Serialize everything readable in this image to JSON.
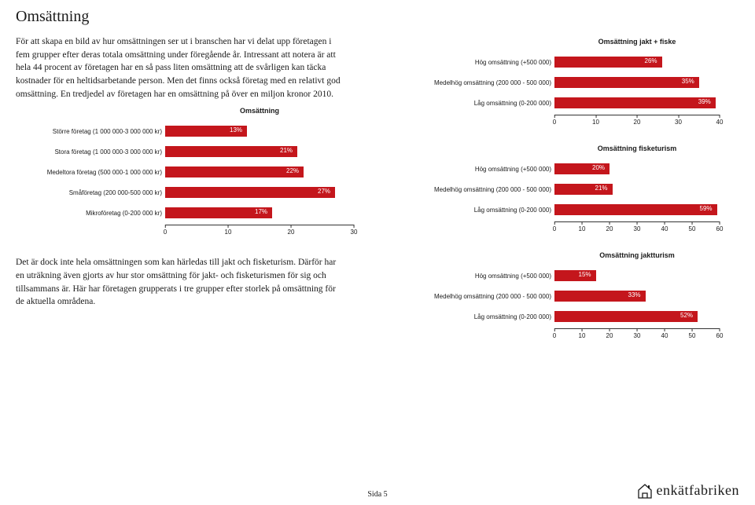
{
  "title": "Omsättning",
  "intro": "För att skapa en bild av hur omsättningen ser ut i branschen har vi delat upp företagen i fem grupper efter deras totala omsättning under föregående år. Intressant att notera är att hela 44 procent av företagen har en så pass liten omsättning att de svårligen kan täcka kostnader för en heltidsarbetande person. Men det finns också företag med en relativt god omsättning. En tredjedel av företagen har en omsättning på över en miljon kronor 2010.",
  "second_para": "Det är dock inte hela omsättningen som kan härledas till jakt och fisketurism. Därför har en uträkning även gjorts av hur stor omsättning för jakt- och fisketurismen för sig och tillsammans är. Här har företagen grupperats i tre grupper efter storlek på omsättning för de aktuella områdena.",
  "chart_main": {
    "title": "Omsättning",
    "label_width": 190,
    "bar_area_width": 240,
    "max": 30,
    "ticks": [
      0,
      10,
      20,
      30
    ],
    "bar_color": "#c4161c",
    "rows": [
      {
        "label": "Större företag (1 000 000-3 000 000 kr)",
        "value": 13,
        "text": "13%"
      },
      {
        "label": "Stora företag (1 000 000-3 000 000 kr)",
        "value": 21,
        "text": "21%"
      },
      {
        "label": "Medeltora företag (500 000-1 000 000 kr)",
        "value": 22,
        "text": "22%"
      },
      {
        "label": "Småföretag (200 000-500 000 kr)",
        "value": 27,
        "text": "27%"
      },
      {
        "label": "Mikroföretag (0-200 000 kr)",
        "value": 17,
        "text": "17%"
      }
    ]
  },
  "chart_r1": {
    "title": "Omsättning jakt + fiske",
    "label_width": 185,
    "bar_area_width": 210,
    "max": 40,
    "ticks": [
      0,
      10,
      20,
      30,
      40
    ],
    "bar_color": "#c4161c",
    "rows": [
      {
        "label": "Hög omsättning (+500 000)",
        "value": 26,
        "text": "26%"
      },
      {
        "label": "Medelhög omsättning (200 000 - 500 000)",
        "value": 35,
        "text": "35%"
      },
      {
        "label": "Låg omsättning (0-200 000)",
        "value": 39,
        "text": "39%"
      }
    ]
  },
  "chart_r2": {
    "title": "Omsättning fisketurism",
    "label_width": 185,
    "bar_area_width": 210,
    "max": 60,
    "ticks": [
      0,
      10,
      20,
      30,
      40,
      50,
      60
    ],
    "bar_color": "#c4161c",
    "rows": [
      {
        "label": "Hög omsättning (+500 000)",
        "value": 20,
        "text": "20%"
      },
      {
        "label": "Medelhög omsättning (200 000 - 500 000)",
        "value": 21,
        "text": "21%"
      },
      {
        "label": "Låg omsättning (0-200 000)",
        "value": 59,
        "text": "59%"
      }
    ]
  },
  "chart_r3": {
    "title": "Omsättning jaktturism",
    "label_width": 185,
    "bar_area_width": 210,
    "max": 60,
    "ticks": [
      0,
      10,
      20,
      30,
      40,
      50,
      60
    ],
    "bar_color": "#c4161c",
    "rows": [
      {
        "label": "Hög omsättning (+500 000)",
        "value": 15,
        "text": "15%"
      },
      {
        "label": "Medelhög omsättning (200 000 - 500 000)",
        "value": 33,
        "text": "33%"
      },
      {
        "label": "Låg omsättning (0-200 000)",
        "value": 52,
        "text": "52%"
      }
    ]
  },
  "footer": {
    "page": "Sida 5",
    "logo": "enkätfabriken"
  }
}
